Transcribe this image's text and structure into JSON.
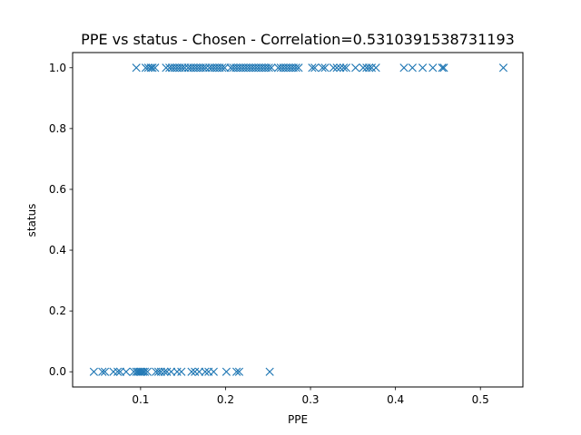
{
  "chart_data": {
    "type": "scatter",
    "title": "PPE vs status - Chosen - Correlation=0.5310391538731193",
    "xlabel": "PPE",
    "ylabel": "status",
    "xlim": [
      0.02,
      0.55
    ],
    "ylim": [
      -0.05,
      1.05
    ],
    "x_ticks": [
      {
        "value": 0.1,
        "label": "0.1"
      },
      {
        "value": 0.2,
        "label": "0.2"
      },
      {
        "value": 0.3,
        "label": "0.3"
      },
      {
        "value": 0.4,
        "label": "0.4"
      },
      {
        "value": 0.5,
        "label": "0.5"
      }
    ],
    "y_ticks": [
      {
        "value": 0.0,
        "label": "0.0"
      },
      {
        "value": 0.2,
        "label": "0.2"
      },
      {
        "value": 0.4,
        "label": "0.4"
      },
      {
        "value": 0.6,
        "label": "0.6"
      },
      {
        "value": 0.8,
        "label": "0.8"
      },
      {
        "value": 1.0,
        "label": "1.0"
      }
    ],
    "grid": false,
    "marker": "x",
    "series_color": "#1f77b4",
    "series": [
      {
        "points": [
          [
            0.045,
            0
          ],
          [
            0.055,
            0
          ],
          [
            0.058,
            0
          ],
          [
            0.068,
            0
          ],
          [
            0.073,
            0
          ],
          [
            0.076,
            0
          ],
          [
            0.083,
            0
          ],
          [
            0.092,
            0
          ],
          [
            0.095,
            0
          ],
          [
            0.097,
            0
          ],
          [
            0.099,
            0
          ],
          [
            0.101,
            0
          ],
          [
            0.103,
            0
          ],
          [
            0.105,
            0
          ],
          [
            0.108,
            0
          ],
          [
            0.118,
            0
          ],
          [
            0.121,
            0
          ],
          [
            0.124,
            0
          ],
          [
            0.128,
            0
          ],
          [
            0.131,
            0
          ],
          [
            0.136,
            0
          ],
          [
            0.143,
            0
          ],
          [
            0.148,
            0
          ],
          [
            0.16,
            0
          ],
          [
            0.164,
            0
          ],
          [
            0.169,
            0
          ],
          [
            0.176,
            0
          ],
          [
            0.18,
            0
          ],
          [
            0.186,
            0
          ],
          [
            0.201,
            0
          ],
          [
            0.213,
            0
          ],
          [
            0.216,
            0
          ],
          [
            0.252,
            0
          ],
          [
            0.095,
            1
          ],
          [
            0.106,
            1
          ],
          [
            0.109,
            1
          ],
          [
            0.112,
            1
          ],
          [
            0.114,
            1
          ],
          [
            0.117,
            1
          ],
          [
            0.13,
            1
          ],
          [
            0.134,
            1
          ],
          [
            0.137,
            1
          ],
          [
            0.14,
            1
          ],
          [
            0.143,
            1
          ],
          [
            0.146,
            1
          ],
          [
            0.149,
            1
          ],
          [
            0.152,
            1
          ],
          [
            0.156,
            1
          ],
          [
            0.159,
            1
          ],
          [
            0.162,
            1
          ],
          [
            0.165,
            1
          ],
          [
            0.168,
            1
          ],
          [
            0.171,
            1
          ],
          [
            0.174,
            1
          ],
          [
            0.177,
            1
          ],
          [
            0.181,
            1
          ],
          [
            0.184,
            1
          ],
          [
            0.187,
            1
          ],
          [
            0.19,
            1
          ],
          [
            0.193,
            1
          ],
          [
            0.196,
            1
          ],
          [
            0.199,
            1
          ],
          [
            0.206,
            1
          ],
          [
            0.209,
            1
          ],
          [
            0.212,
            1
          ],
          [
            0.215,
            1
          ],
          [
            0.218,
            1
          ],
          [
            0.221,
            1
          ],
          [
            0.224,
            1
          ],
          [
            0.227,
            1
          ],
          [
            0.23,
            1
          ],
          [
            0.233,
            1
          ],
          [
            0.236,
            1
          ],
          [
            0.239,
            1
          ],
          [
            0.242,
            1
          ],
          [
            0.245,
            1
          ],
          [
            0.248,
            1
          ],
          [
            0.251,
            1
          ],
          [
            0.254,
            1
          ],
          [
            0.262,
            1
          ],
          [
            0.265,
            1
          ],
          [
            0.268,
            1
          ],
          [
            0.271,
            1
          ],
          [
            0.274,
            1
          ],
          [
            0.277,
            1
          ],
          [
            0.28,
            1
          ],
          [
            0.283,
            1
          ],
          [
            0.286,
            1
          ],
          [
            0.302,
            1
          ],
          [
            0.305,
            1
          ],
          [
            0.314,
            1
          ],
          [
            0.317,
            1
          ],
          [
            0.327,
            1
          ],
          [
            0.331,
            1
          ],
          [
            0.335,
            1
          ],
          [
            0.339,
            1
          ],
          [
            0.342,
            1
          ],
          [
            0.353,
            1
          ],
          [
            0.362,
            1
          ],
          [
            0.366,
            1
          ],
          [
            0.369,
            1
          ],
          [
            0.372,
            1
          ],
          [
            0.377,
            1
          ],
          [
            0.41,
            1
          ],
          [
            0.42,
            1
          ],
          [
            0.432,
            1
          ],
          [
            0.444,
            1
          ],
          [
            0.455,
            1
          ],
          [
            0.457,
            1
          ],
          [
            0.527,
            1
          ]
        ]
      }
    ]
  }
}
